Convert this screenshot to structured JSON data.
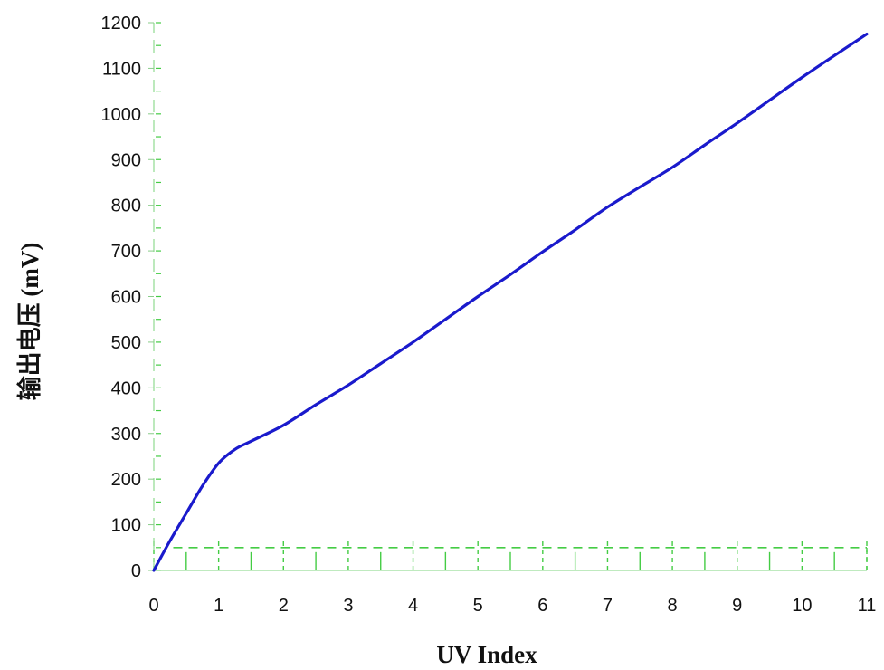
{
  "chart_data": {
    "type": "line",
    "title": "",
    "xlabel": "UV  Index",
    "ylabel": "输出电压 (mV)",
    "xlim": [
      0,
      11
    ],
    "ylim": [
      0,
      1200
    ],
    "x_ticks": [
      "0",
      "1",
      "2",
      "3",
      "4",
      "5",
      "6",
      "7",
      "8",
      "9",
      "10",
      "11"
    ],
    "y_ticks": [
      "0",
      "100",
      "200",
      "300",
      "400",
      "500",
      "600",
      "700",
      "800",
      "900",
      "1000",
      "1100",
      "1200"
    ],
    "grid": "green dashed x-axis minor ticks and reference line",
    "reference_line": {
      "y": 50,
      "color": "#33cc33",
      "style": "dashed"
    },
    "series": [
      {
        "color": "#1a1acc",
        "x": [
          0,
          0.25,
          0.5,
          0.75,
          1.0,
          1.25,
          1.5,
          2.0,
          2.5,
          3.0,
          3.5,
          4.0,
          4.5,
          5.0,
          5.5,
          6.0,
          6.5,
          7.0,
          7.5,
          8.0,
          8.5,
          9.0,
          9.5,
          10.0,
          10.5,
          11.0
        ],
        "y": [
          0,
          65,
          125,
          185,
          235,
          265,
          283,
          318,
          363,
          406,
          453,
          500,
          550,
          600,
          648,
          698,
          746,
          796,
          840,
          883,
          932,
          980,
          1030,
          1080,
          1128,
          1175
        ]
      }
    ]
  }
}
